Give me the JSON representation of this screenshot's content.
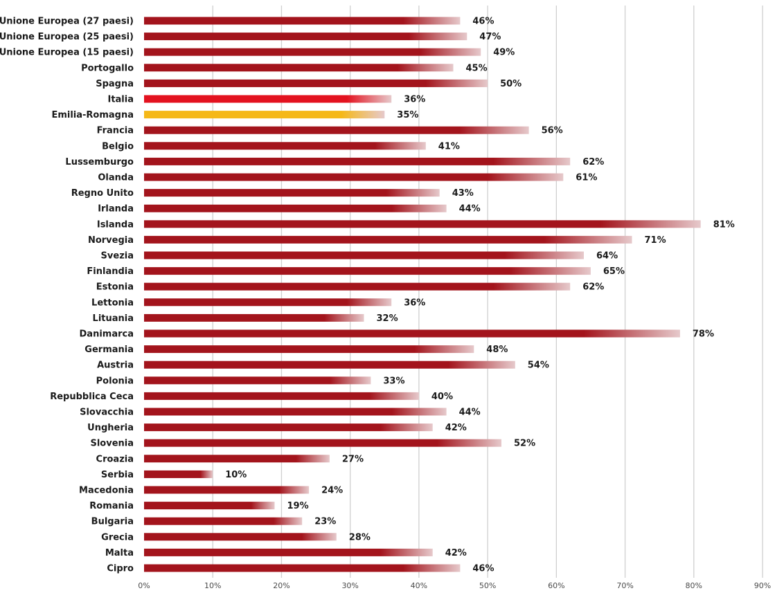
{
  "chart_data": {
    "type": "bar",
    "orientation": "horizontal",
    "title": "",
    "xlabel": "",
    "ylabel": "",
    "xlim": [
      0,
      90
    ],
    "grid": true,
    "value_suffix": "%",
    "x_ticks": [
      "0%",
      "10%",
      "20%",
      "30%",
      "40%",
      "50%",
      "60%",
      "70%",
      "80%",
      "90%"
    ],
    "categories": [
      "Unione Europea (27 paesi)",
      "Unione Europea (25 paesi)",
      "Unione Europea (15 paesi)",
      "Portogallo",
      "Spagna",
      "Italia",
      "Emilia-Romagna",
      "Francia",
      "Belgio",
      "Lussemburgo",
      "Olanda",
      "Regno Unito",
      "Irlanda",
      "Islanda",
      "Norvegia",
      "Svezia",
      "Finlandia",
      "Estonia",
      "Lettonia",
      "Lituania",
      "Danimarca",
      "Germania",
      "Austria",
      "Polonia",
      "Repubblica Ceca",
      "Slovacchia",
      "Ungheria",
      "Slovenia",
      "Croazia",
      "Serbia",
      "Macedonia",
      "Romania",
      "Bulgaria",
      "Grecia",
      "Malta",
      "Cipro"
    ],
    "values": [
      46,
      47,
      49,
      45,
      50,
      36,
      35,
      56,
      41,
      62,
      61,
      43,
      44,
      81,
      71,
      64,
      65,
      62,
      36,
      32,
      78,
      48,
      54,
      33,
      40,
      44,
      42,
      52,
      27,
      10,
      24,
      19,
      23,
      28,
      42,
      46
    ],
    "colors": {
      "default": "#a3141c",
      "Italia": "#e3121f",
      "Emilia-Romagna": "#f5b818"
    }
  }
}
